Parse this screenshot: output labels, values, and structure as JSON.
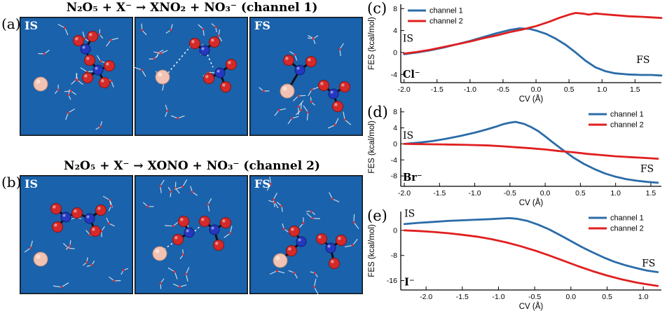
{
  "colors": {
    "channel1": "#2b6ca8",
    "channel2": "#e01f1f",
    "snapshot_bg": "#1a62ab",
    "oxygen": "#d42a2a",
    "nitrogen": "#2538c0",
    "halide": "#f2c3b3"
  },
  "panel_a": {
    "label": "(a)",
    "title": "N₂O₅ + X⁻ → XNO₂ + NO₃⁻ (channel 1)",
    "snapshots": [
      {
        "tag": "IS"
      },
      {
        "tag": ""
      },
      {
        "tag": "FS"
      }
    ]
  },
  "panel_b": {
    "label": "(b)",
    "title": "N₂O₅ + X⁻ → XONO + NO₃⁻ (channel 2)",
    "snapshots": [
      {
        "tag": "IS"
      },
      {
        "tag": ""
      },
      {
        "tag": "FS"
      }
    ]
  },
  "chart_data": [
    {
      "panel": "(c)",
      "type": "line",
      "ion": "Cl⁻",
      "xlabel": "CV (Å)",
      "ylabel": "FES (kcal/mol)",
      "xlim": [
        -2.05,
        1.9
      ],
      "ylim": [
        -5.5,
        8.8
      ],
      "x_ticks": [
        -2.0,
        -1.5,
        -1.0,
        -0.5,
        0.0,
        0.5,
        1.0,
        1.5
      ],
      "y_ticks": [
        -4,
        0,
        4,
        8
      ],
      "grid": false,
      "legend_pos": "upper-left",
      "series": [
        {
          "name": "channel 1",
          "color": "#2b6ca8",
          "points": [
            [
              -2.0,
              -0.3
            ],
            [
              -1.8,
              0.0
            ],
            [
              -1.6,
              0.4
            ],
            [
              -1.4,
              0.9
            ],
            [
              -1.2,
              1.5
            ],
            [
              -1.0,
              2.1
            ],
            [
              -0.8,
              2.8
            ],
            [
              -0.6,
              3.5
            ],
            [
              -0.4,
              4.1
            ],
            [
              -0.25,
              4.4
            ],
            [
              -0.1,
              4.3
            ],
            [
              0.0,
              4.0
            ],
            [
              0.15,
              3.4
            ],
            [
              0.3,
              2.5
            ],
            [
              0.45,
              1.4
            ],
            [
              0.6,
              0.0
            ],
            [
              0.75,
              -1.5
            ],
            [
              0.9,
              -2.7
            ],
            [
              1.05,
              -3.4
            ],
            [
              1.2,
              -3.8
            ],
            [
              1.4,
              -4.0
            ],
            [
              1.6,
              -4.1
            ],
            [
              1.75,
              -4.1
            ],
            [
              1.9,
              -4.2
            ]
          ]
        },
        {
          "name": "channel 2",
          "color": "#e01f1f",
          "points": [
            [
              -2.0,
              -0.2
            ],
            [
              -1.8,
              0.1
            ],
            [
              -1.6,
              0.5
            ],
            [
              -1.4,
              1.0
            ],
            [
              -1.2,
              1.5
            ],
            [
              -1.0,
              2.0
            ],
            [
              -0.8,
              2.6
            ],
            [
              -0.6,
              3.1
            ],
            [
              -0.4,
              3.7
            ],
            [
              -0.2,
              4.2
            ],
            [
              0.0,
              4.8
            ],
            [
              0.2,
              5.6
            ],
            [
              0.35,
              6.3
            ],
            [
              0.5,
              6.9
            ],
            [
              0.6,
              7.2
            ],
            [
              0.7,
              7.1
            ],
            [
              0.8,
              6.9
            ],
            [
              0.9,
              7.1
            ],
            [
              1.0,
              7.0
            ],
            [
              1.2,
              6.8
            ],
            [
              1.4,
              6.6
            ],
            [
              1.6,
              6.5
            ],
            [
              1.75,
              6.4
            ],
            [
              1.9,
              6.3
            ]
          ]
        }
      ],
      "annotations": [
        {
          "text": "IS",
          "x": -2.02,
          "y": 2.0,
          "bold": false
        },
        {
          "text": "FS",
          "x": 1.52,
          "y": -1.9,
          "bold": false
        },
        {
          "text": "Cl⁻",
          "x": -2.02,
          "y": -4.6,
          "bold": true
        }
      ]
    },
    {
      "panel": "(d)",
      "type": "line",
      "ion": "Br⁻",
      "xlabel": "CV (Å)",
      "ylabel": "FES (kcal/mol)",
      "xlim": [
        -2.05,
        1.65
      ],
      "ylim": [
        -10.6,
        9.0
      ],
      "x_ticks": [
        -2.0,
        -1.5,
        -1.0,
        -0.5,
        0.0,
        0.5,
        1.0,
        1.5
      ],
      "y_ticks": [
        -8,
        -4,
        0,
        4,
        8
      ],
      "grid": false,
      "legend_pos": "upper-right",
      "series": [
        {
          "name": "channel 1",
          "color": "#2b6ca8",
          "points": [
            [
              -2.0,
              0.0
            ],
            [
              -1.8,
              0.3
            ],
            [
              -1.6,
              0.7
            ],
            [
              -1.4,
              1.3
            ],
            [
              -1.2,
              2.0
            ],
            [
              -1.0,
              2.8
            ],
            [
              -0.85,
              3.5
            ],
            [
              -0.7,
              4.3
            ],
            [
              -0.6,
              4.9
            ],
            [
              -0.5,
              5.3
            ],
            [
              -0.42,
              5.5
            ],
            [
              -0.3,
              5.0
            ],
            [
              -0.2,
              4.2
            ],
            [
              -0.1,
              3.2
            ],
            [
              0.0,
              1.9
            ],
            [
              0.1,
              0.5
            ],
            [
              0.25,
              -1.5
            ],
            [
              0.4,
              -3.4
            ],
            [
              0.55,
              -5.0
            ],
            [
              0.7,
              -6.3
            ],
            [
              0.85,
              -7.4
            ],
            [
              1.0,
              -8.2
            ],
            [
              1.15,
              -8.8
            ],
            [
              1.3,
              -9.2
            ],
            [
              1.45,
              -9.5
            ],
            [
              1.6,
              -9.7
            ]
          ]
        },
        {
          "name": "channel 2",
          "color": "#e01f1f",
          "points": [
            [
              -2.0,
              0.0
            ],
            [
              -1.8,
              -0.05
            ],
            [
              -1.6,
              -0.1
            ],
            [
              -1.4,
              -0.15
            ],
            [
              -1.2,
              -0.2
            ],
            [
              -1.0,
              -0.3
            ],
            [
              -0.8,
              -0.4
            ],
            [
              -0.6,
              -0.6
            ],
            [
              -0.4,
              -0.85
            ],
            [
              -0.2,
              -1.1
            ],
            [
              0.0,
              -1.4
            ],
            [
              0.2,
              -1.8
            ],
            [
              0.4,
              -2.1
            ],
            [
              0.6,
              -2.5
            ],
            [
              0.8,
              -2.8
            ],
            [
              1.0,
              -3.1
            ],
            [
              1.2,
              -3.3
            ],
            [
              1.4,
              -3.5
            ],
            [
              1.6,
              -3.7
            ]
          ]
        }
      ],
      "annotations": [
        {
          "text": "IS",
          "x": -2.02,
          "y": 1.3,
          "bold": false
        },
        {
          "text": "FS",
          "x": 1.35,
          "y": -7.0,
          "bold": false
        },
        {
          "text": "Br⁻",
          "x": -2.02,
          "y": -9.2,
          "bold": true
        }
      ]
    },
    {
      "panel": "(e)",
      "type": "line",
      "ion": "I⁻",
      "xlabel": "CV (Å)",
      "ylabel": "FES (kcal/mol)",
      "xlim": [
        -2.35,
        1.25
      ],
      "ylim": [
        -19.0,
        6.0
      ],
      "x_ticks": [
        -2.0,
        -1.5,
        -1.0,
        -0.5,
        0.0,
        0.5,
        1.0
      ],
      "y_ticks": [
        -16,
        -8,
        0
      ],
      "grid": false,
      "legend_pos": "upper-right",
      "series": [
        {
          "name": "channel 1",
          "color": "#2b6ca8",
          "points": [
            [
              -2.3,
              2.0
            ],
            [
              -2.1,
              2.4
            ],
            [
              -1.9,
              2.7
            ],
            [
              -1.7,
              3.0
            ],
            [
              -1.5,
              3.2
            ],
            [
              -1.3,
              3.4
            ],
            [
              -1.1,
              3.6
            ],
            [
              -0.95,
              3.8
            ],
            [
              -0.85,
              3.9
            ],
            [
              -0.75,
              3.7
            ],
            [
              -0.6,
              3.0
            ],
            [
              -0.45,
              1.8
            ],
            [
              -0.3,
              0.3
            ],
            [
              -0.15,
              -1.5
            ],
            [
              0.0,
              -3.4
            ],
            [
              0.15,
              -5.3
            ],
            [
              0.3,
              -7.0
            ],
            [
              0.45,
              -8.6
            ],
            [
              0.6,
              -10.0
            ],
            [
              0.75,
              -11.1
            ],
            [
              0.9,
              -12.0
            ],
            [
              1.05,
              -12.8
            ],
            [
              1.2,
              -13.3
            ]
          ]
        },
        {
          "name": "channel 2",
          "color": "#e01f1f",
          "points": [
            [
              -2.3,
              0.0
            ],
            [
              -2.1,
              -0.2
            ],
            [
              -1.9,
              -0.5
            ],
            [
              -1.7,
              -0.9
            ],
            [
              -1.5,
              -1.4
            ],
            [
              -1.3,
              -2.0
            ],
            [
              -1.1,
              -2.8
            ],
            [
              -0.9,
              -3.8
            ],
            [
              -0.7,
              -5.0
            ],
            [
              -0.5,
              -6.4
            ],
            [
              -0.3,
              -8.0
            ],
            [
              -0.1,
              -9.7
            ],
            [
              0.1,
              -11.4
            ],
            [
              0.3,
              -13.0
            ],
            [
              0.5,
              -14.4
            ],
            [
              0.7,
              -15.6
            ],
            [
              0.9,
              -16.6
            ],
            [
              1.05,
              -17.2
            ],
            [
              1.2,
              -17.7
            ]
          ]
        }
      ],
      "annotations": [
        {
          "text": "IS",
          "x": -2.3,
          "y": 4.3,
          "bold": false
        },
        {
          "text": "FS",
          "x": 0.98,
          "y": -11.5,
          "bold": false
        },
        {
          "text": "I⁻",
          "x": -2.3,
          "y": -17.5,
          "bold": true
        }
      ]
    }
  ]
}
